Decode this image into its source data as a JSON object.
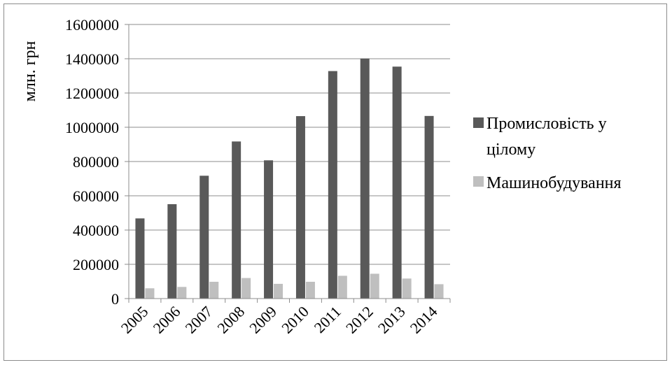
{
  "chart_data": {
    "type": "bar",
    "title": "",
    "xlabel": "",
    "ylabel": "млн. грн",
    "ylim": [
      0,
      1600000
    ],
    "yticks": [
      0,
      200000,
      400000,
      600000,
      800000,
      1000000,
      1200000,
      1400000,
      1600000
    ],
    "ytick_labels": [
      "0",
      "200000",
      "400000",
      "600000",
      "800000",
      "1000000",
      "1200000",
      "1400000",
      "1600000"
    ],
    "categories": [
      "2005",
      "2006",
      "2007",
      "2008",
      "2009",
      "2010",
      "2011",
      "2012",
      "2013",
      "2014"
    ],
    "grid": true,
    "legend_position": "right",
    "series": [
      {
        "name": "Промисловість у цілому",
        "color": "#595959",
        "values": [
          468000,
          551000,
          717000,
          917000,
          807000,
          1065000,
          1328000,
          1401000,
          1354000,
          1066000
        ]
      },
      {
        "name": "Машинобудування",
        "color": "#bfbfbf",
        "values": [
          60000,
          68000,
          98000,
          120000,
          86000,
          98000,
          133000,
          145000,
          117000,
          84000
        ]
      }
    ],
    "legend_labels": {
      "series0_line1": "Промисловість у",
      "series0_line2": "цілому",
      "series1": "Машинобудування"
    }
  }
}
